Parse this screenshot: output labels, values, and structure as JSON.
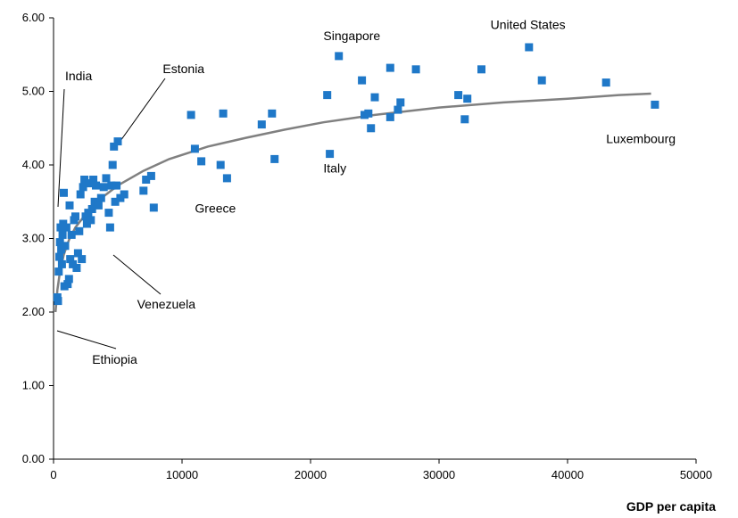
{
  "chart_data": {
    "type": "scatter",
    "xlabel": "GDP per capita",
    "ylabel": "",
    "xlim": [
      0,
      50000
    ],
    "ylim": [
      0,
      6
    ],
    "x_ticks": [
      "0",
      "10000",
      "20000",
      "30000",
      "40000",
      "50000"
    ],
    "y_ticks": [
      "0.00",
      "1.00",
      "2.00",
      "3.00",
      "4.00",
      "5.00",
      "6.00"
    ],
    "grid": false,
    "legend": "none",
    "colors": {
      "points": "#1f78c8",
      "trend": "#808080",
      "axes": "#000000"
    },
    "series": [
      {
        "type": "scatter",
        "points": [
          [
            300,
            2.2
          ],
          [
            350,
            2.15
          ],
          [
            400,
            2.55
          ],
          [
            450,
            2.75
          ],
          [
            500,
            2.95
          ],
          [
            550,
            3.15
          ],
          [
            600,
            2.85
          ],
          [
            650,
            2.65
          ],
          [
            700,
            3.05
          ],
          [
            750,
            3.2
          ],
          [
            800,
            3.62
          ],
          [
            850,
            2.35
          ],
          [
            900,
            2.9
          ],
          [
            1000,
            3.15
          ],
          [
            1100,
            2.38
          ],
          [
            1200,
            2.45
          ],
          [
            1250,
            3.45
          ],
          [
            1300,
            2.72
          ],
          [
            1400,
            3.05
          ],
          [
            1500,
            2.65
          ],
          [
            1600,
            3.25
          ],
          [
            1700,
            3.3
          ],
          [
            1800,
            2.6
          ],
          [
            1900,
            2.8
          ],
          [
            2000,
            3.1
          ],
          [
            2100,
            3.6
          ],
          [
            2200,
            2.72
          ],
          [
            2300,
            3.7
          ],
          [
            2400,
            3.8
          ],
          [
            2500,
            3.3
          ],
          [
            2600,
            3.2
          ],
          [
            2700,
            3.35
          ],
          [
            2800,
            3.75
          ],
          [
            2900,
            3.25
          ],
          [
            3000,
            3.4
          ],
          [
            3100,
            3.8
          ],
          [
            3200,
            3.5
          ],
          [
            3300,
            3.72
          ],
          [
            3500,
            3.45
          ],
          [
            3700,
            3.55
          ],
          [
            3900,
            3.7
          ],
          [
            4100,
            3.82
          ],
          [
            4300,
            3.35
          ],
          [
            4400,
            3.15
          ],
          [
            4500,
            3.72
          ],
          [
            4600,
            4.0
          ],
          [
            4700,
            4.25
          ],
          [
            4800,
            3.5
          ],
          [
            4900,
            3.72
          ],
          [
            5000,
            4.32
          ],
          [
            5200,
            3.55
          ],
          [
            5500,
            3.6
          ],
          [
            7000,
            3.65
          ],
          [
            7200,
            3.8
          ],
          [
            7600,
            3.85
          ],
          [
            7800,
            3.42
          ],
          [
            10700,
            4.68
          ],
          [
            11000,
            4.22
          ],
          [
            11500,
            4.05
          ],
          [
            13000,
            4.0
          ],
          [
            13200,
            4.7
          ],
          [
            13500,
            3.82
          ],
          [
            16200,
            4.55
          ],
          [
            17000,
            4.7
          ],
          [
            17200,
            4.08
          ],
          [
            21300,
            4.95
          ],
          [
            21500,
            4.15
          ],
          [
            22200,
            5.48
          ],
          [
            24000,
            5.15
          ],
          [
            24200,
            4.68
          ],
          [
            24500,
            4.7
          ],
          [
            24700,
            4.5
          ],
          [
            25000,
            4.92
          ],
          [
            26200,
            5.32
          ],
          [
            26200,
            4.65
          ],
          [
            26800,
            4.75
          ],
          [
            27000,
            4.85
          ],
          [
            28200,
            5.3
          ],
          [
            31500,
            4.95
          ],
          [
            32000,
            4.62
          ],
          [
            32200,
            4.9
          ],
          [
            33300,
            5.3
          ],
          [
            37000,
            5.6
          ],
          [
            38000,
            5.15
          ],
          [
            43000,
            5.12
          ],
          [
            46800,
            4.82
          ]
        ]
      },
      {
        "type": "line",
        "points": [
          [
            150,
            2.0
          ],
          [
            300,
            2.3
          ],
          [
            500,
            2.55
          ],
          [
            800,
            2.78
          ],
          [
            1200,
            2.98
          ],
          [
            1700,
            3.15
          ],
          [
            2500,
            3.33
          ],
          [
            3500,
            3.52
          ],
          [
            5000,
            3.72
          ],
          [
            7000,
            3.92
          ],
          [
            9000,
            4.08
          ],
          [
            12000,
            4.25
          ],
          [
            15000,
            4.37
          ],
          [
            18000,
            4.48
          ],
          [
            21000,
            4.58
          ],
          [
            25000,
            4.68
          ],
          [
            30000,
            4.78
          ],
          [
            35000,
            4.85
          ],
          [
            40000,
            4.9
          ],
          [
            44000,
            4.95
          ],
          [
            46500,
            4.97
          ]
        ]
      }
    ],
    "annotations": [
      {
        "text": "India",
        "x": 900,
        "y": 5.15
      },
      {
        "text": "Estonia",
        "x": 8500,
        "y": 5.25
      },
      {
        "text": "Singapore",
        "x": 21000,
        "y": 5.7
      },
      {
        "text": "United States",
        "x": 34000,
        "y": 5.85
      },
      {
        "text": "Luxembourg",
        "x": 43000,
        "y": 4.3
      },
      {
        "text": "Italy",
        "x": 21000,
        "y": 3.9
      },
      {
        "text": "Greece",
        "x": 11000,
        "y": 3.35
      },
      {
        "text": "Venezuela",
        "x": 6500,
        "y": 2.05
      },
      {
        "text": "Ethiopia",
        "x": 3000,
        "y": 1.3
      }
    ]
  }
}
